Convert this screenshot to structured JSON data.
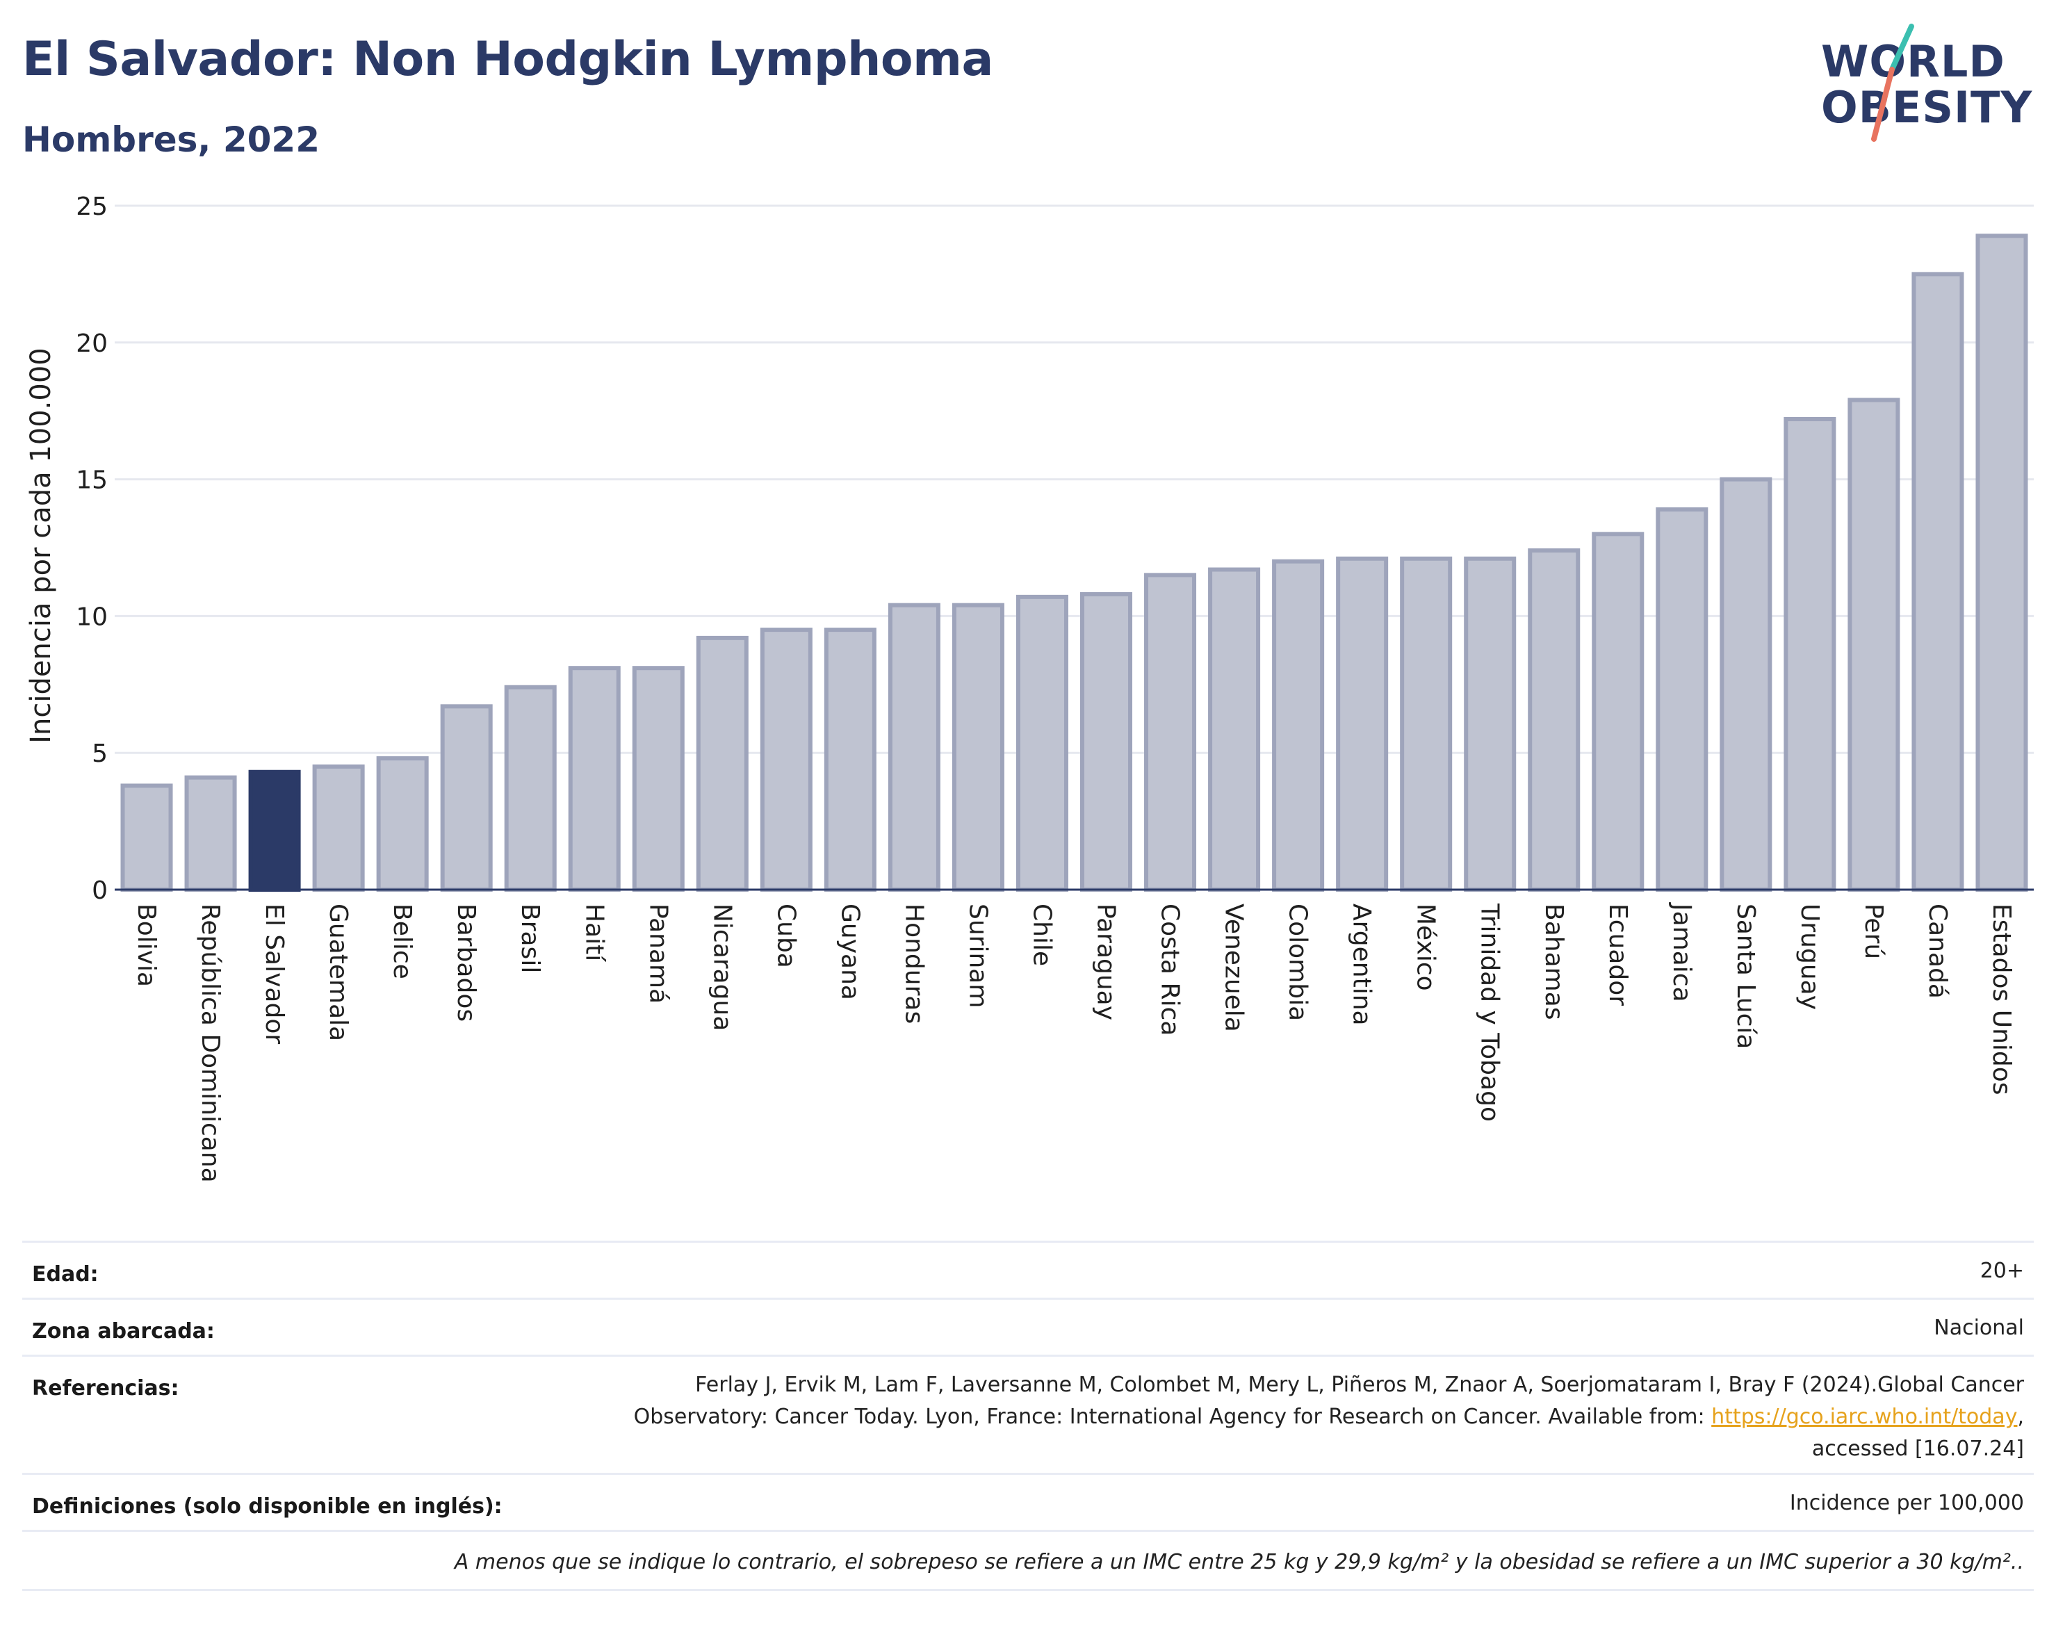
{
  "header": {
    "title": "El Salvador: Non Hodgkin Lymphoma",
    "subtitle": "Hombres, 2022"
  },
  "logo": {
    "line1": "WORLD",
    "line2": "OBESITY",
    "colors": {
      "navy": "#2b3a67",
      "teal": "#3bbfb0",
      "coral": "#e8735f"
    }
  },
  "chart_data": {
    "type": "bar",
    "ylabel": "Incidencia por cada 100.000",
    "ylim": [
      0,
      25
    ],
    "yticks": [
      0,
      5,
      10,
      15,
      20,
      25
    ],
    "grid": true,
    "highlight": "El Salvador",
    "colors": {
      "bar": "#bfc3d1",
      "bar_edge": "#9ea4bb",
      "highlight": "#2b3a67",
      "grid": "#e6e8ef"
    },
    "categories": [
      "Bolivia",
      "República Dominicana",
      "El Salvador",
      "Guatemala",
      "Belice",
      "Barbados",
      "Brasil",
      "Haití",
      "Panamá",
      "Nicaragua",
      "Cuba",
      "Guyana",
      "Honduras",
      "Surinam",
      "Chile",
      "Paraguay",
      "Costa Rica",
      "Venezuela",
      "Colombia",
      "Argentina",
      "México",
      "Trinidad y Tobago",
      "Bahamas",
      "Ecuador",
      "Jamaica",
      "Santa Lucía",
      "Uruguay",
      "Perú",
      "Canadá",
      "Estados Unidos"
    ],
    "values": [
      3.8,
      4.1,
      4.3,
      4.5,
      4.8,
      6.7,
      7.4,
      8.1,
      8.1,
      9.2,
      9.5,
      9.5,
      10.4,
      10.4,
      10.7,
      10.8,
      11.5,
      11.7,
      12.0,
      12.1,
      12.1,
      12.1,
      12.4,
      13.0,
      13.9,
      15.0,
      17.2,
      17.9,
      22.5,
      23.9
    ]
  },
  "meta": {
    "age_label": "Edad:",
    "age_value": "20+",
    "zone_label": "Zona abarcada:",
    "zone_value": "Nacional",
    "refs_label": "Referencias:",
    "refs_line1": "Ferlay J, Ervik M, Lam F, Laversanne M, Colombet M, Mery L, Piñeros M, Znaor A, Soerjomataram I, Bray F (2024).Global Cancer",
    "refs_line2_pre": "Observatory: Cancer Today. Lyon, France: International Agency for Research on Cancer. Available from: ",
    "refs_link": "https://gco.iarc.who.int/today",
    "refs_line2_post": ",",
    "refs_line3": "accessed [16.07.24]",
    "defs_label": "Definiciones (solo disponible en inglés):",
    "defs_value": "Incidence per 100,000",
    "footnote": "A menos que se indique lo contrario, el sobrepeso se refiere a un IMC entre 25 kg y 29,9 kg/m² y la obesidad se refiere a un IMC superior a 30 kg/m².."
  }
}
